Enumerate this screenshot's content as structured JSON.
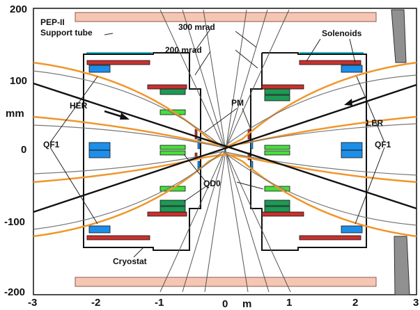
{
  "axes": {
    "y_ticks": [
      "200",
      "100",
      "0",
      "-100",
      "-200"
    ],
    "x_ticks": [
      "-3",
      "-2",
      "-1",
      "0",
      "1",
      "2",
      "3"
    ],
    "y_unit": "mm",
    "x_unit": "m"
  },
  "labels": {
    "pep_ii_line1": "PEP-II",
    "pep_ii_line2": "Support tube",
    "mrad_300": "300 mrad",
    "mrad_200": "200 mrad",
    "solenoids": "Solenoids",
    "her": "HER",
    "ler": "LER",
    "pm": "PM",
    "qf1_left": "QF1",
    "qf1_right": "QF1",
    "qd0": "QD0",
    "cryostat": "Cryostat"
  },
  "colors": {
    "support_tube": "#f5c6b4",
    "solenoid": "#c8312e",
    "green_dark": "#1d9a55",
    "green_light": "#45e03a",
    "blue_magnet": "#1f8ee8",
    "beam_orange": "#f0962a",
    "beam_black": "#111111",
    "beam_gray": "#777777",
    "cryostat_line": "#111111",
    "cyan_line": "#1ab3c8",
    "grey_shield": "#909090"
  }
}
